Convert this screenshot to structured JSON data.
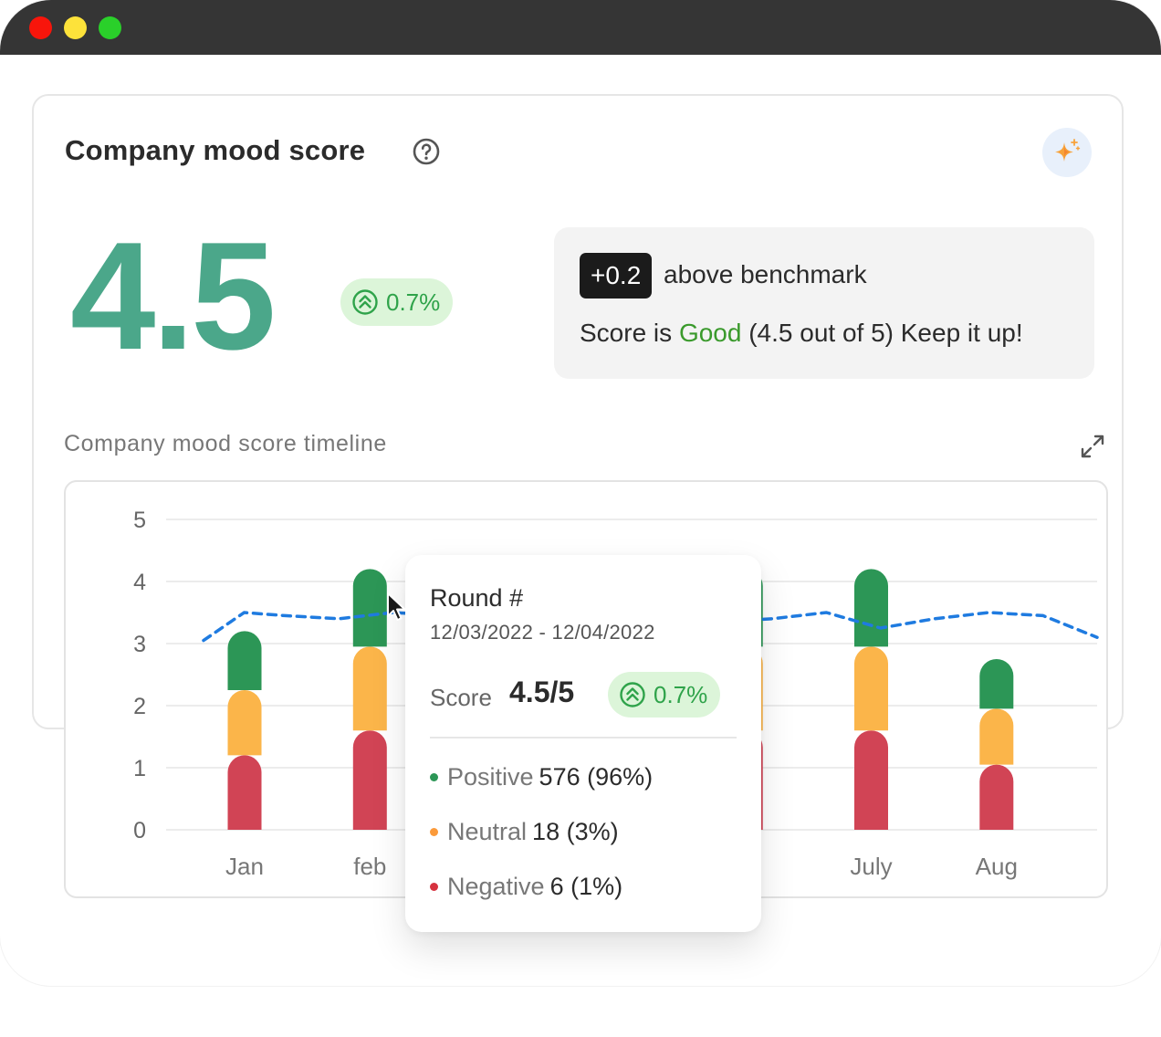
{
  "window": {
    "controls": [
      "close",
      "minimize",
      "maximize"
    ]
  },
  "card": {
    "title": "Company mood score",
    "score": "4.5",
    "trend": "0.7%",
    "benchmark": {
      "delta": "+0.2",
      "text": "above benchmark",
      "sentence_prefix": "Score is",
      "rating": "Good",
      "sentence_suffix": "(4.5 out of 5) Keep it up!"
    },
    "timeline_label": "Company mood score timeline"
  },
  "colors": {
    "positive": "#2c9656",
    "neutral": "#fbb54a",
    "negative": "#d14455",
    "score": "#4ba78a",
    "trend_line": "#1f7be0"
  },
  "chart_data": {
    "type": "bar",
    "stacked": true,
    "ylim": [
      0,
      5
    ],
    "y_ticks": [
      "0",
      "1",
      "2",
      "3",
      "4",
      "5"
    ],
    "categories": [
      "Jan",
      "feb",
      "",
      "",
      "",
      "July",
      "Aug"
    ],
    "series": [
      {
        "name": "Negative",
        "values": [
          1.2,
          1.6,
          null,
          null,
          1.6,
          1.6,
          1.05
        ]
      },
      {
        "name": "Neutral",
        "values": [
          1.05,
          1.35,
          null,
          null,
          1.35,
          1.35,
          0.9
        ]
      },
      {
        "name": "Positive",
        "values": [
          0.95,
          1.25,
          null,
          null,
          1.25,
          1.25,
          0.8
        ]
      }
    ],
    "score_line": {
      "x": [
        0.0,
        0.3,
        0.6,
        1.0,
        1.4,
        1.8,
        2.2,
        2.6,
        3.0,
        3.4,
        3.8,
        4.2,
        4.6,
        5.0,
        5.4,
        5.8,
        6.2,
        6.6
      ],
      "y": [
        3.05,
        3.5,
        3.45,
        3.4,
        3.5,
        3.45,
        3.4,
        3.35,
        3.3,
        3.3,
        3.35,
        3.4,
        3.5,
        3.25,
        3.4,
        3.5,
        3.45,
        3.1
      ]
    }
  },
  "tooltip": {
    "title": "Round #",
    "dates": "12/03/2022 - 12/04/2022",
    "score_label": "Score",
    "score_value": "4.5/5",
    "trend": "0.7%",
    "rows": [
      {
        "name": "Positive",
        "value": "576 (96%)"
      },
      {
        "name": "Neutral",
        "value": "18 (3%)"
      },
      {
        "name": "Negative",
        "value": "6 (1%)"
      }
    ]
  },
  "icons": [
    "help-icon",
    "sparkle-icon",
    "expand-icon",
    "trend-up-icon",
    "cursor-icon"
  ]
}
